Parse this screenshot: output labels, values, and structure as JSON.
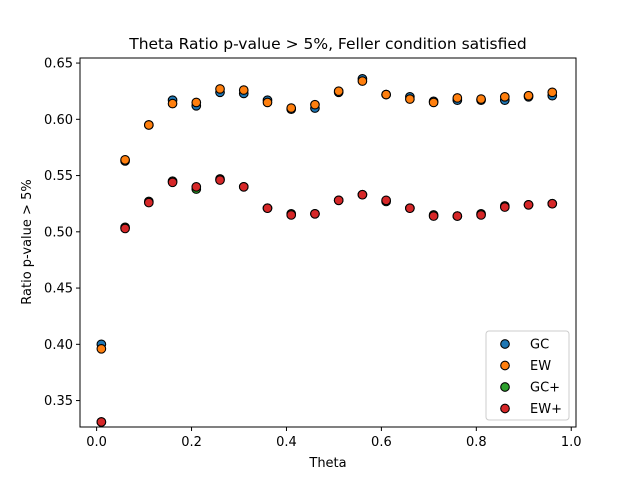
{
  "chart_data": {
    "type": "scatter",
    "title": "Theta Ratio p-value > 5%, Feller condition satisfied",
    "xlabel": "Theta",
    "ylabel": "Ratio p-value > 5%",
    "xlim": [
      -0.035,
      1.01
    ],
    "ylim": [
      0.3265,
      0.6545
    ],
    "xticks": [
      0.0,
      0.2,
      0.4,
      0.6,
      0.8,
      1.0
    ],
    "xtick_labels": [
      "0.0",
      "0.2",
      "0.4",
      "0.6",
      "0.8",
      "1.0"
    ],
    "yticks": [
      0.35,
      0.4,
      0.45,
      0.5,
      0.55,
      0.6,
      0.65
    ],
    "ytick_labels": [
      "0.35",
      "0.40",
      "0.45",
      "0.50",
      "0.55",
      "0.60",
      "0.65"
    ],
    "grid": false,
    "legend_position": "lower-right",
    "x": [
      0.01,
      0.06,
      0.11,
      0.16,
      0.21,
      0.26,
      0.31,
      0.36,
      0.41,
      0.46,
      0.51,
      0.56,
      0.61,
      0.66,
      0.71,
      0.76,
      0.81,
      0.86,
      0.91,
      0.96
    ],
    "series": [
      {
        "name": "GC",
        "color": "#1f77b4",
        "values": [
          0.4,
          0.563,
          0.595,
          0.617,
          0.612,
          0.624,
          0.623,
          0.617,
          0.609,
          0.61,
          0.624,
          0.636,
          0.622,
          0.62,
          0.616,
          0.617,
          0.617,
          0.617,
          0.62,
          0.621
        ]
      },
      {
        "name": "EW",
        "color": "#ff7f0e",
        "values": [
          0.396,
          0.564,
          0.595,
          0.614,
          0.615,
          0.627,
          0.626,
          0.615,
          0.61,
          0.613,
          0.625,
          0.634,
          0.622,
          0.618,
          0.615,
          0.619,
          0.618,
          0.62,
          0.621,
          0.624
        ]
      },
      {
        "name": "GC+",
        "color": "#2ca02c",
        "values": [
          0.331,
          0.504,
          0.527,
          0.545,
          0.538,
          0.547,
          0.54,
          0.521,
          0.516,
          0.516,
          0.528,
          0.533,
          0.527,
          0.521,
          0.515,
          0.514,
          0.516,
          0.523,
          0.524,
          0.525
        ]
      },
      {
        "name": "EW+",
        "color": "#d62728",
        "values": [
          0.331,
          0.503,
          0.526,
          0.544,
          0.54,
          0.546,
          0.54,
          0.521,
          0.515,
          0.516,
          0.528,
          0.533,
          0.528,
          0.521,
          0.514,
          0.514,
          0.515,
          0.522,
          0.524,
          0.525
        ]
      }
    ]
  }
}
